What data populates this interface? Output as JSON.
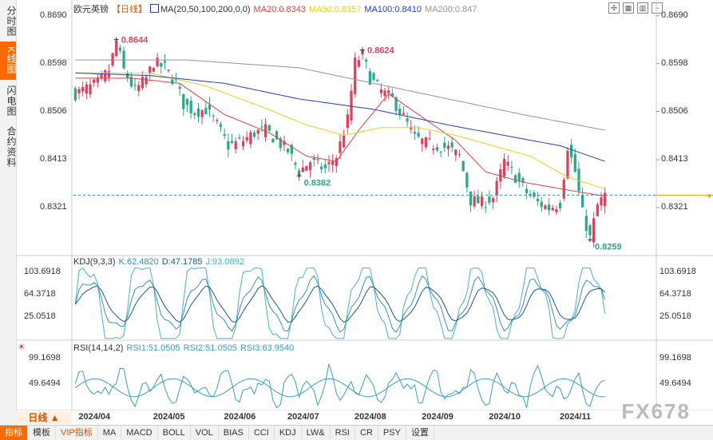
{
  "sidebar": {
    "tabs": [
      {
        "label": "分时图",
        "active": false
      },
      {
        "label": "K线图",
        "active": true
      },
      {
        "label": "闪电图",
        "active": false
      },
      {
        "label": "合约资料",
        "active": false
      }
    ]
  },
  "header": {
    "symbol": "欧元英镑",
    "period": "【日线】",
    "ma_label": "MA(20,50,100,200,0,0)",
    "ma20": "MA20:0.8343",
    "ma50": "MA50:0.8357",
    "ma100": "MA100:0.8410",
    "ma200": "MA200:0.847"
  },
  "colors": {
    "up": "#e0405a",
    "down": "#2aa88c",
    "ma20": "#e04040",
    "ma50": "#e8d020",
    "ma100": "#2040c0",
    "ma200": "#a09088",
    "kdj_k": "#3a8fb7",
    "kdj_d": "#1a5a8a",
    "kdj_j": "#4ab0d0",
    "rsi": "#3aa0c0",
    "price_line": "#ff9900"
  },
  "kdj": {
    "label": "KDJ(9,3,3)",
    "k": "K:62.4820",
    "d": "D:47.1785",
    "j": "J:93.0892",
    "ticks": [
      "103.6918",
      "64.3718",
      "25.0518"
    ]
  },
  "rsi": {
    "label": "RSI(14,14,2)",
    "rsi1": "RSI1:51.0505",
    "rsi2": "RSI2:51.0505",
    "rsi3": "RSI3:63.9540",
    "ticks": [
      "99.1698",
      "49.6494"
    ]
  },
  "period_button": "日线 ▲",
  "dates": [
    "2024/04",
    "2024/05",
    "2024/06",
    "2024/07",
    "2024/08",
    "2024/09",
    "2024/10",
    "2024/11"
  ],
  "toolbar": [
    "指标",
    "模板",
    "VIP指标",
    "MA",
    "MACD",
    "BOLL",
    "VOL",
    "BIAS",
    "CCI",
    "KDJ",
    "LW&",
    "RSI",
    "CR",
    "PSY",
    "设置"
  ],
  "watermark": "FX678",
  "chart_data": {
    "type": "candlestick",
    "title": "欧元英镑 日线",
    "y_ticks": [
      "0.8690",
      "0.8598",
      "0.8506",
      "0.8413",
      "0.8321"
    ],
    "ylim": [
      0.8235,
      0.8705
    ],
    "annotations": [
      {
        "label": "0.8644",
        "value": 0.8644,
        "kind": "high"
      },
      {
        "label": "0.8624",
        "value": 0.8624,
        "kind": "high"
      },
      {
        "label": "0.8382",
        "value": 0.8382,
        "kind": "low"
      },
      {
        "label": "0.8259",
        "value": 0.8259,
        "kind": "low"
      }
    ],
    "current_price": 0.8345,
    "anchors": [
      [
        0,
        0.854
      ],
      [
        6,
        0.856
      ],
      [
        9,
        0.8585
      ],
      [
        11,
        0.864
      ],
      [
        13,
        0.8585
      ],
      [
        16,
        0.8545
      ],
      [
        19,
        0.857
      ],
      [
        21,
        0.86
      ],
      [
        24,
        0.859
      ],
      [
        27,
        0.856
      ],
      [
        29,
        0.852
      ],
      [
        32,
        0.8505
      ],
      [
        35,
        0.851
      ],
      [
        38,
        0.848
      ],
      [
        41,
        0.844
      ],
      [
        45,
        0.845
      ],
      [
        48,
        0.8465
      ],
      [
        51,
        0.847
      ],
      [
        54,
        0.845
      ],
      [
        57,
        0.843
      ],
      [
        60,
        0.839
      ],
      [
        63,
        0.841
      ],
      [
        67,
        0.8395
      ],
      [
        70,
        0.842
      ],
      [
        73,
        0.849
      ],
      [
        75,
        0.86
      ],
      [
        77,
        0.8615
      ],
      [
        79,
        0.857
      ],
      [
        82,
        0.8545
      ],
      [
        85,
        0.853
      ],
      [
        88,
        0.8495
      ],
      [
        91,
        0.8455
      ],
      [
        94,
        0.8445
      ],
      [
        97,
        0.844
      ],
      [
        100,
        0.8435
      ],
      [
        103,
        0.842
      ],
      [
        106,
        0.8335
      ],
      [
        109,
        0.833
      ],
      [
        112,
        0.834
      ],
      [
        115,
        0.841
      ],
      [
        118,
        0.838
      ],
      [
        121,
        0.835
      ],
      [
        124,
        0.833
      ],
      [
        127,
        0.832
      ],
      [
        130,
        0.833
      ],
      [
        132,
        0.844
      ],
      [
        134,
        0.839
      ],
      [
        136,
        0.831
      ],
      [
        138,
        0.8262
      ],
      [
        140,
        0.8325
      ],
      [
        142,
        0.8345
      ]
    ],
    "ma20_anchors": [
      [
        0,
        0.857
      ],
      [
        15,
        0.857
      ],
      [
        28,
        0.856
      ],
      [
        40,
        0.85
      ],
      [
        52,
        0.8465
      ],
      [
        62,
        0.842
      ],
      [
        70,
        0.841
      ],
      [
        76,
        0.847
      ],
      [
        84,
        0.854
      ],
      [
        92,
        0.85
      ],
      [
        102,
        0.845
      ],
      [
        110,
        0.839
      ],
      [
        120,
        0.837
      ],
      [
        128,
        0.836
      ],
      [
        136,
        0.835
      ],
      [
        142,
        0.8343
      ]
    ],
    "ma50_anchors": [
      [
        0,
        0.858
      ],
      [
        20,
        0.858
      ],
      [
        35,
        0.8555
      ],
      [
        50,
        0.8515
      ],
      [
        62,
        0.848
      ],
      [
        72,
        0.846
      ],
      [
        82,
        0.8475
      ],
      [
        92,
        0.8475
      ],
      [
        102,
        0.846
      ],
      [
        112,
        0.844
      ],
      [
        122,
        0.842
      ],
      [
        132,
        0.838
      ],
      [
        142,
        0.8357
      ]
    ],
    "ma100_anchors": [
      [
        0,
        0.858
      ],
      [
        20,
        0.8575
      ],
      [
        40,
        0.856
      ],
      [
        60,
        0.853
      ],
      [
        80,
        0.851
      ],
      [
        100,
        0.848
      ],
      [
        115,
        0.846
      ],
      [
        130,
        0.844
      ],
      [
        142,
        0.841
      ]
    ],
    "ma200_anchors": [
      [
        0,
        0.8605
      ],
      [
        30,
        0.8605
      ],
      [
        60,
        0.859
      ],
      [
        80,
        0.856
      ],
      [
        100,
        0.853
      ],
      [
        120,
        0.85
      ],
      [
        142,
        0.847
      ]
    ],
    "kdj_ylim": [
      0,
      110
    ],
    "rsi_ylim": [
      20,
      110
    ],
    "x_count": 143,
    "x_date_positions": [
      6,
      26,
      45,
      62,
      80,
      98,
      116,
      135
    ]
  }
}
